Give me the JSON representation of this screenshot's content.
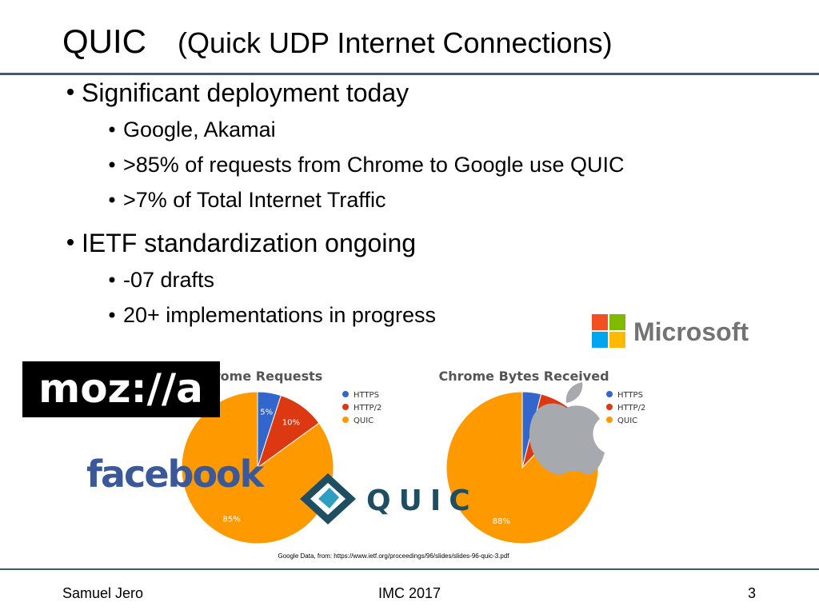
{
  "title": "QUIC",
  "title_sub": "(Quick UDP Internet Connections)",
  "bullets": [
    {
      "text": "Significant deployment today",
      "sub": [
        "Google, Akamai",
        ">85% of requests from Chrome to Google use QUIC",
        ">7% of Total Internet Traffic"
      ]
    },
    {
      "text": "IETF standardization ongoing",
      "sub": [
        "-07 drafts",
        "20+ implementations in progress"
      ]
    }
  ],
  "logos": {
    "microsoft": "Microsoft",
    "mozilla": "moz://a",
    "facebook": "facebook",
    "quic": "QUIC"
  },
  "chart_data": [
    {
      "type": "pie",
      "title": "Chrome Requests",
      "categories": [
        "HTTPS",
        "HTTP/2",
        "QUIC"
      ],
      "values": [
        5,
        10,
        85
      ],
      "value_labels": [
        "5%",
        "10%",
        "85%"
      ],
      "colors": [
        "#3366cc",
        "#dc3912",
        "#ff9900"
      ]
    },
    {
      "type": "pie",
      "title": "Chrome Bytes Received",
      "categories": [
        "HTTPS",
        "HTTP/2",
        "QUIC"
      ],
      "values": [
        4,
        8,
        88
      ],
      "value_labels": [
        null,
        null,
        "88%"
      ],
      "colors": [
        "#3366cc",
        "#dc3912",
        "#ff9900"
      ]
    }
  ],
  "source": "Google Data, from: https://www.ietf.org/proceedings/96/slides/slides-96-quic-3.pdf",
  "footer": {
    "left": "Samuel Jero",
    "center": "IMC 2017",
    "right": "3"
  }
}
